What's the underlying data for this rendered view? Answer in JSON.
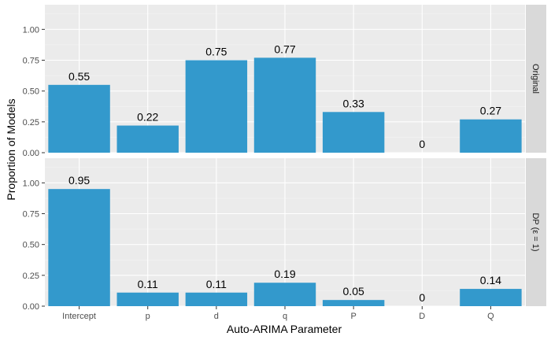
{
  "chart_data": {
    "type": "bar",
    "xlabel": "Auto-ARIMA Parameter",
    "ylabel": "Proportion of Models",
    "categories": [
      "Intercept",
      "p",
      "d",
      "q",
      "P",
      "D",
      "Q"
    ],
    "ylim": [
      0,
      1.2
    ],
    "yticks": [
      0,
      0.25,
      0.5,
      0.75,
      1.0
    ],
    "ytick_labels": [
      "0.00",
      "0.25",
      "0.50",
      "0.75",
      "1.00"
    ],
    "bar_color": "#3399cc",
    "panels": [
      {
        "name": "Original",
        "values": [
          0.55,
          0.22,
          0.75,
          0.77,
          0.33,
          0,
          0.27
        ],
        "labels": [
          "0.55",
          "0.22",
          "0.75",
          "0.77",
          "0.33",
          "0",
          "0.27"
        ]
      },
      {
        "name": "DP (ε = 1)",
        "values": [
          0.95,
          0.11,
          0.11,
          0.19,
          0.05,
          0,
          0.14
        ],
        "labels": [
          "0.95",
          "0.11",
          "0.11",
          "0.19",
          "0.05",
          "0",
          "0.14"
        ]
      }
    ]
  }
}
